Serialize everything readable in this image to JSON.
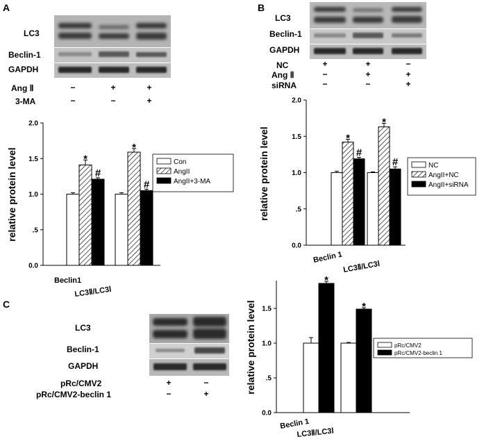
{
  "panels": [
    {
      "id": "A",
      "label": "A",
      "blot_labels": [
        "LC3",
        "Beclin-1",
        "GAPDH"
      ],
      "conditions": [
        {
          "name": "Ang Ⅱ",
          "marks": [
            "−",
            "+",
            "+"
          ]
        },
        {
          "name": "3-MA",
          "marks": [
            "−",
            "−",
            "+"
          ]
        }
      ]
    },
    {
      "id": "B",
      "label": "B",
      "blot_labels": [
        "LC3",
        "Beclin-1",
        "GAPDH"
      ],
      "conditions": [
        {
          "name": "NC",
          "marks": [
            "+",
            "+",
            "−"
          ]
        },
        {
          "name": "Ang Ⅱ",
          "marks": [
            "−",
            "+",
            "+"
          ]
        },
        {
          "name": "siRNA",
          "marks": [
            "−",
            "−",
            "+"
          ]
        }
      ]
    },
    {
      "id": "C",
      "label": "C",
      "blot_labels": [
        "LC3",
        "Beclin-1",
        "GAPDH"
      ],
      "conditions": [
        {
          "name": "pRc/CMV2",
          "marks": [
            "+",
            "−"
          ]
        },
        {
          "name": "pRc/CMV2-beclin 1",
          "marks": [
            "−",
            "+"
          ]
        }
      ]
    }
  ],
  "chart_data": [
    {
      "id": "A",
      "type": "bar",
      "ylabel": "relative protein level",
      "ylim": [
        0,
        2.0
      ],
      "yticks": [
        "0.0",
        ".5",
        "1.0",
        "1.5",
        "2.0"
      ],
      "categories": [
        "Beclin1",
        "LC3Ⅱ/LC3Ⅰ"
      ],
      "legend_position": "right",
      "series": [
        {
          "name": "Con",
          "pattern": "white",
          "values": [
            1.0,
            1.0
          ],
          "errors": [
            0.02,
            0.02
          ]
        },
        {
          "name": "AngII",
          "pattern": "hatch",
          "values": [
            1.41,
            1.59
          ],
          "errors": [
            0.07,
            0.05
          ]
        },
        {
          "name": "AngII+3-MA",
          "pattern": "black",
          "values": [
            1.21,
            1.05
          ],
          "errors": [
            0.02,
            0.02
          ]
        }
      ],
      "annotations": [
        {
          "series": 1,
          "category": 0,
          "text": "*"
        },
        {
          "series": 2,
          "category": 0,
          "text": "#"
        },
        {
          "series": 1,
          "category": 1,
          "text": "*"
        },
        {
          "series": 2,
          "category": 1,
          "text": "#"
        }
      ]
    },
    {
      "id": "B",
      "type": "bar",
      "ylabel": "relative protein level",
      "ylim": [
        0,
        2.0
      ],
      "yticks": [
        "0.0",
        ".5",
        "1.0",
        "1.5",
        "2.0"
      ],
      "categories": [
        "Beclin 1",
        "LC3Ⅱ/LC3Ⅰ"
      ],
      "legend_position": "right",
      "series": [
        {
          "name": "NC",
          "pattern": "white",
          "values": [
            1.0,
            1.0
          ],
          "errors": [
            0.02,
            0.01
          ]
        },
        {
          "name": "AngII+NC",
          "pattern": "hatch",
          "values": [
            1.42,
            1.63
          ],
          "errors": [
            0.04,
            0.05
          ]
        },
        {
          "name": "AngII+siRNA",
          "pattern": "black",
          "values": [
            1.19,
            1.05
          ],
          "errors": [
            0.02,
            0.03
          ]
        }
      ],
      "annotations": [
        {
          "series": 1,
          "category": 0,
          "text": "*"
        },
        {
          "series": 2,
          "category": 0,
          "text": "#"
        },
        {
          "series": 1,
          "category": 1,
          "text": "*"
        },
        {
          "series": 2,
          "category": 1,
          "text": "#"
        }
      ]
    },
    {
      "id": "C",
      "type": "bar",
      "ylabel": "relative protein level",
      "ylim": [
        0,
        1.9
      ],
      "yticks": [
        "0.0",
        ".5",
        "1.0",
        "1.5"
      ],
      "categories": [
        "Beclin 1",
        "LC3Ⅱ/LC3Ⅰ"
      ],
      "legend_position": "right",
      "series": [
        {
          "name": "pRc/CMV2",
          "pattern": "white",
          "values": [
            1.0,
            1.0
          ],
          "errors": [
            0.08,
            0.01
          ]
        },
        {
          "name": "pRc/CMV2-beclin 1",
          "pattern": "black",
          "values": [
            1.86,
            1.49
          ],
          "errors": [
            0.03,
            0.02
          ]
        }
      ],
      "annotations": [
        {
          "series": 1,
          "category": 0,
          "text": "*"
        },
        {
          "series": 1,
          "category": 1,
          "text": "*"
        }
      ]
    }
  ]
}
